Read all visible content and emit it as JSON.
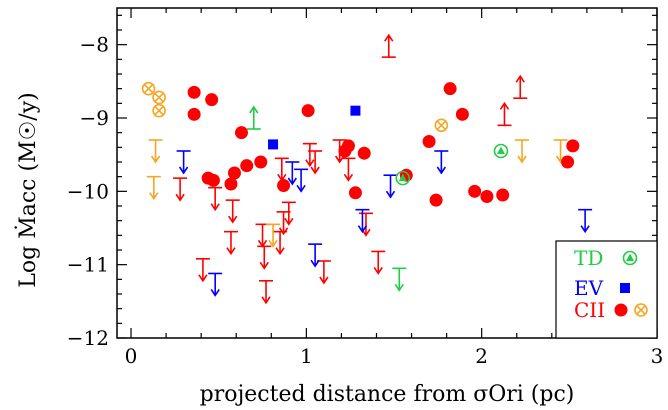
{
  "chart_data": {
    "type": "scatter",
    "xlabel": "projected distance from σOri (pc)",
    "ylabel": "Log  Ṁacc    (M☉/y)",
    "xlim": [
      -0.08,
      3
    ],
    "ylim": [
      -12,
      -7.5
    ],
    "xticks": [
      "0",
      "1",
      "2",
      "3"
    ],
    "xtick_values": [
      0,
      1,
      2,
      3
    ],
    "yticks": [
      "−12",
      "−11",
      "−10",
      "−9",
      "−8"
    ],
    "ytick_values": [
      -12,
      -11,
      -10,
      -9,
      -8
    ],
    "colors": {
      "CII": "#ff0000",
      "EV": "#0000ff",
      "TD": "#22cc44",
      "crossed": "#f5a623"
    },
    "legend": [
      {
        "label": "TD",
        "color": "#22cc44",
        "symbol": "td"
      },
      {
        "label": "EV",
        "color": "#0000ff",
        "symbol": "square"
      },
      {
        "label": "CII",
        "color": "#ff0000",
        "symbol": "circle+crossed"
      }
    ],
    "series": [
      {
        "name": "CII",
        "color": "#ff0000",
        "marker": "circle",
        "points": [
          [
            0.36,
            -8.65
          ],
          [
            0.36,
            -8.95
          ],
          [
            0.44,
            -9.82
          ],
          [
            0.46,
            -8.75
          ],
          [
            0.47,
            -9.85
          ],
          [
            0.57,
            -9.9
          ],
          [
            0.59,
            -9.75
          ],
          [
            0.63,
            -9.2
          ],
          [
            0.66,
            -9.65
          ],
          [
            0.74,
            -9.6
          ],
          [
            0.87,
            -9.92
          ],
          [
            1.01,
            -8.9
          ],
          [
            1.22,
            -9.45
          ],
          [
            1.24,
            -9.38
          ],
          [
            1.28,
            -10.02
          ],
          [
            1.33,
            -9.48
          ],
          [
            1.57,
            -9.78
          ],
          [
            1.7,
            -9.32
          ],
          [
            1.74,
            -10.12
          ],
          [
            1.82,
            -8.6
          ],
          [
            1.89,
            -8.95
          ],
          [
            1.96,
            -10.0
          ],
          [
            2.03,
            -10.07
          ],
          [
            2.12,
            -10.05
          ],
          [
            2.49,
            -9.6
          ],
          [
            2.52,
            -9.38
          ]
        ]
      },
      {
        "name": "crossed",
        "color": "#f5a623",
        "marker": "crossed-circle",
        "points": [
          [
            0.1,
            -8.6
          ],
          [
            0.16,
            -8.72
          ],
          [
            0.16,
            -8.9
          ],
          [
            1.77,
            -9.1
          ]
        ]
      },
      {
        "name": "EV",
        "color": "#0000ff",
        "marker": "square",
        "points": [
          [
            0.81,
            -9.36
          ],
          [
            1.28,
            -8.9
          ]
        ]
      },
      {
        "name": "TD",
        "color": "#22cc44",
        "marker": "td",
        "points": [
          [
            1.55,
            -9.82
          ],
          [
            2.11,
            -9.45
          ]
        ]
      }
    ],
    "upper_limits": [
      {
        "color": "#ff0000",
        "points": [
          [
            0.28,
            -9.82
          ],
          [
            0.41,
            -10.92
          ],
          [
            0.48,
            -9.95
          ],
          [
            0.57,
            -10.55
          ],
          [
            0.58,
            -10.12
          ],
          [
            0.75,
            -10.45
          ],
          [
            0.76,
            -10.75
          ],
          [
            0.77,
            -11.22
          ],
          [
            0.85,
            -10.55
          ],
          [
            0.86,
            -9.55
          ],
          [
            0.87,
            -10.28
          ],
          [
            0.9,
            -10.15
          ],
          [
            1.02,
            -9.35
          ],
          [
            1.05,
            -9.45
          ],
          [
            1.1,
            -10.95
          ],
          [
            1.19,
            -9.3
          ],
          [
            1.24,
            -9.55
          ],
          [
            1.34,
            -10.3
          ],
          [
            1.41,
            -10.82
          ]
        ]
      },
      {
        "color": "#0000ff",
        "points": [
          [
            0.3,
            -9.45
          ],
          [
            0.48,
            -11.12
          ],
          [
            0.92,
            -9.6
          ],
          [
            0.97,
            -9.7
          ],
          [
            1.05,
            -10.72
          ],
          [
            1.32,
            -10.25
          ],
          [
            1.48,
            -9.78
          ],
          [
            1.77,
            -9.45
          ],
          [
            2.59,
            -10.25
          ]
        ]
      },
      {
        "color": "#f5a623",
        "points": [
          [
            0.14,
            -9.3
          ],
          [
            0.13,
            -9.8
          ],
          [
            0.81,
            -10.45
          ],
          [
            2.23,
            -9.3
          ],
          [
            2.45,
            -9.3
          ]
        ]
      },
      {
        "color": "#22cc44",
        "points": [
          [
            1.53,
            -11.05
          ]
        ]
      }
    ],
    "lower_limits": [
      {
        "color": "#ff0000",
        "points": [
          [
            1.47,
            -8.17
          ],
          [
            2.13,
            -9.1
          ],
          [
            2.22,
            -8.73
          ]
        ]
      },
      {
        "color": "#22cc44",
        "points": [
          [
            0.7,
            -9.15
          ]
        ]
      }
    ]
  }
}
